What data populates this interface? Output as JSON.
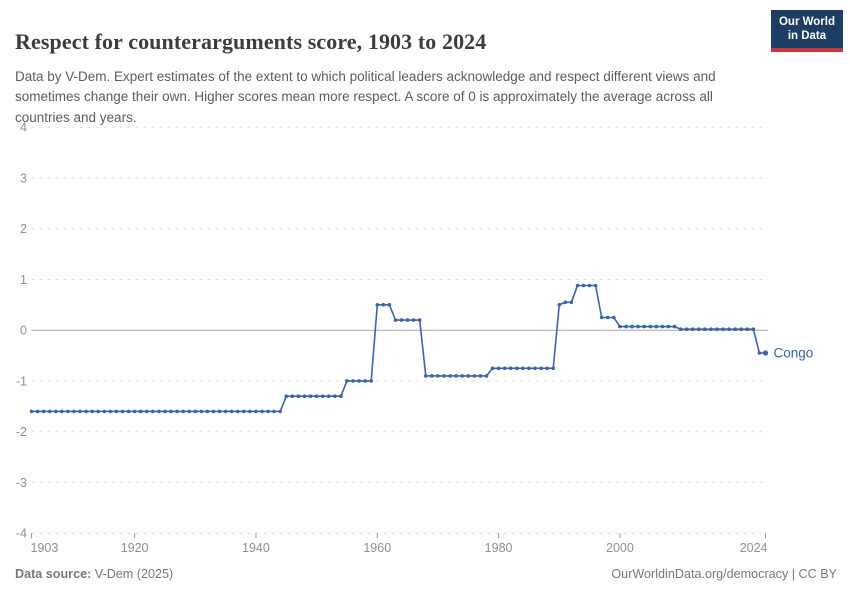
{
  "header": {
    "title": "Respect for counterarguments score, 1903 to 2024",
    "subtitle": "Data by V-Dem. Expert estimates of the extent to which political leaders acknowledge and respect different views and sometimes change their own. Higher scores mean more respect. A score of 0 is approximately the average across all countries and years.",
    "logo": {
      "line1": "Our World",
      "line2": "in Data"
    }
  },
  "footer": {
    "source_label": "Data source:",
    "source_value": " V-Dem (2025)",
    "rights": "OurWorldinData.org/democracy | CC BY"
  },
  "colors": {
    "line": "#3c63a8",
    "entity_label": "#3c63a8",
    "grid_dashed": "#dcdcdc",
    "zero_line": "#a3a3a3",
    "axis_tick": "#9a9a9a",
    "tick_label": "#8f8f8f",
    "title": "#3d3d3d",
    "subtitle": "#5c5c5c",
    "footer": "#787878",
    "logo_bg": "#1d3d63",
    "logo_red": "#c9353d"
  },
  "chart_data": {
    "type": "line",
    "title": "Respect for counterarguments score, 1903 to 2024",
    "xlabel": "",
    "ylabel": "",
    "xlim": [
      1903,
      2024
    ],
    "ylim": [
      -4,
      4
    ],
    "x_ticks": [
      1903,
      1920,
      1940,
      1960,
      1980,
      2000,
      2024
    ],
    "y_ticks": [
      4,
      3,
      2,
      1,
      0,
      -1,
      -2,
      -3,
      -4
    ],
    "grid": "horizontal-dashed, solid zero line",
    "legend_position": "end-of-line label",
    "series": [
      {
        "name": "Congo",
        "start_year": 1903,
        "end_year": 2024,
        "values": [
          -1.6,
          -1.6,
          -1.6,
          -1.6,
          -1.6,
          -1.6,
          -1.6,
          -1.6,
          -1.6,
          -1.6,
          -1.6,
          -1.6,
          -1.6,
          -1.6,
          -1.6,
          -1.6,
          -1.6,
          -1.6,
          -1.6,
          -1.6,
          -1.6,
          -1.6,
          -1.6,
          -1.6,
          -1.6,
          -1.6,
          -1.6,
          -1.6,
          -1.6,
          -1.6,
          -1.6,
          -1.6,
          -1.6,
          -1.6,
          -1.6,
          -1.6,
          -1.6,
          -1.6,
          -1.6,
          -1.6,
          -1.6,
          -1.6,
          -1.3,
          -1.3,
          -1.3,
          -1.3,
          -1.3,
          -1.3,
          -1.3,
          -1.3,
          -1.3,
          -1.3,
          -1.0,
          -1.0,
          -1.0,
          -1.0,
          -1.0,
          0.5,
          0.5,
          0.5,
          0.2,
          0.2,
          0.2,
          0.2,
          0.2,
          -0.9,
          -0.9,
          -0.9,
          -0.9,
          -0.9,
          -0.9,
          -0.9,
          -0.9,
          -0.9,
          -0.9,
          -0.9,
          -0.75,
          -0.75,
          -0.75,
          -0.75,
          -0.75,
          -0.75,
          -0.75,
          -0.75,
          -0.75,
          -0.75,
          -0.75,
          0.5,
          0.55,
          0.55,
          0.88,
          0.88,
          0.88,
          0.88,
          0.25,
          0.25,
          0.25,
          0.07,
          0.07,
          0.07,
          0.07,
          0.07,
          0.07,
          0.07,
          0.07,
          0.07,
          0.07,
          0.02,
          0.02,
          0.02,
          0.02,
          0.02,
          0.02,
          0.02,
          0.02,
          0.02,
          0.02,
          0.02,
          0.02,
          0.02,
          -0.45,
          -0.45
        ]
      }
    ]
  }
}
